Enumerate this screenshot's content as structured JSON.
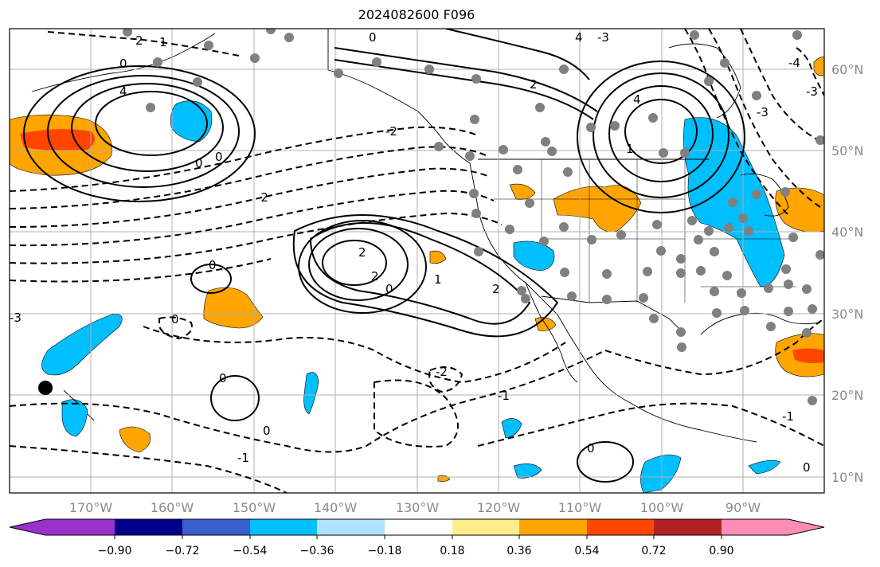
{
  "title": "2024082600 F096",
  "lat_labels": [
    "60°N",
    "50°N",
    "40°N",
    "30°N",
    "20°N",
    "10°N"
  ],
  "lon_labels": [
    "170°W",
    "160°W",
    "150°W",
    "140°W",
    "130°W",
    "120°W",
    "110°W",
    "100°W",
    "90°W"
  ],
  "contour_labels": [
    "4",
    "2",
    "1",
    "0",
    "-2",
    "-1",
    "-3",
    "-4"
  ],
  "colorbar": {
    "colors": [
      "#9932cc",
      "#00008b",
      "#3a5fcd",
      "#00bfff",
      "#b0e2ff",
      "#ffffff",
      "#ffec8b",
      "#ffa500",
      "#ff4500",
      "#b22222",
      "#ff8cb4"
    ],
    "ticks": [
      "−0.90",
      "−0.72",
      "−0.54",
      "−0.36",
      "−0.18",
      "0.18",
      "0.36",
      "0.54",
      "0.72",
      "0.90"
    ]
  },
  "colors": {
    "positive_fill": "#ffa500",
    "strong_fill": "#ff4500",
    "negative_fill": "#00bfff",
    "station_dot": "#808080",
    "contour": "#000000"
  }
}
